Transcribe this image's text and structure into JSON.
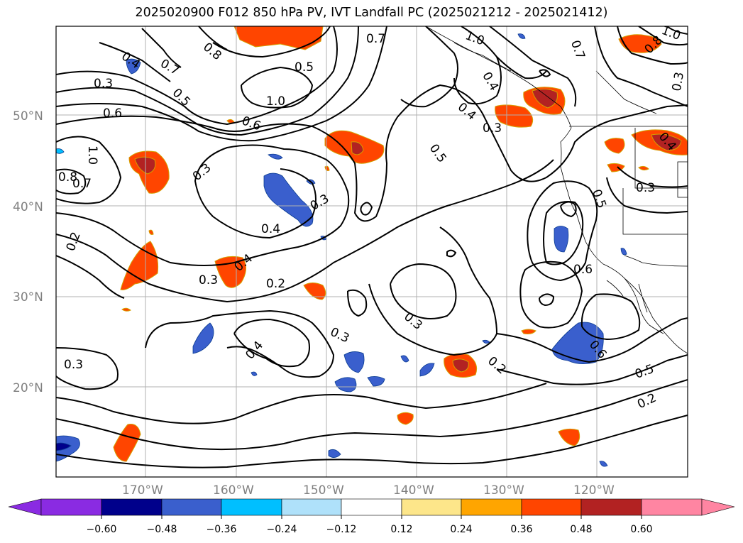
{
  "title": "2025020900 F012 850 hPa PV, IVT Landfall PC (2025021212 - 2025021412)",
  "map": {
    "lat_labels": [
      "50°N",
      "40°N",
      "30°N",
      "20°N"
    ],
    "lon_labels": [
      "170°W",
      "160°W",
      "150°W",
      "140°W",
      "130°W",
      "120°W"
    ],
    "contour_labels": [
      "0.4",
      "0.7",
      "0.8",
      "0.5",
      "0.3",
      "0.6",
      "1.0",
      "0.6",
      "0.8",
      "0.7",
      "0.3",
      "0.4",
      "0.3",
      "0.2",
      "0.4",
      "0.3",
      "0.2",
      "0.3",
      "0.4",
      "0.3",
      "0.2",
      "0.3",
      "0.7",
      "0.5",
      "1.0",
      "1.0",
      "0.4",
      "0.3",
      "0.5",
      "0.5",
      "0.3",
      "0.6",
      "0.6",
      "0.5",
      "0.2",
      "0.7",
      "0.8",
      "0.4",
      "1.0",
      "0.3",
      "0.4"
    ]
  },
  "colorbar": {
    "ticks": [
      "−0.60",
      "−0.48",
      "−0.36",
      "−0.24",
      "−0.12",
      "0.12",
      "0.24",
      "0.36",
      "0.48",
      "0.60"
    ],
    "colors": [
      "#8a2be2",
      "#00008b",
      "#3a5fcd",
      "#00bfff",
      "#afe1fa",
      "#ffffff",
      "#fde68a",
      "#ffa500",
      "#ff4500",
      "#b22222",
      "#ff85a2"
    ]
  }
}
